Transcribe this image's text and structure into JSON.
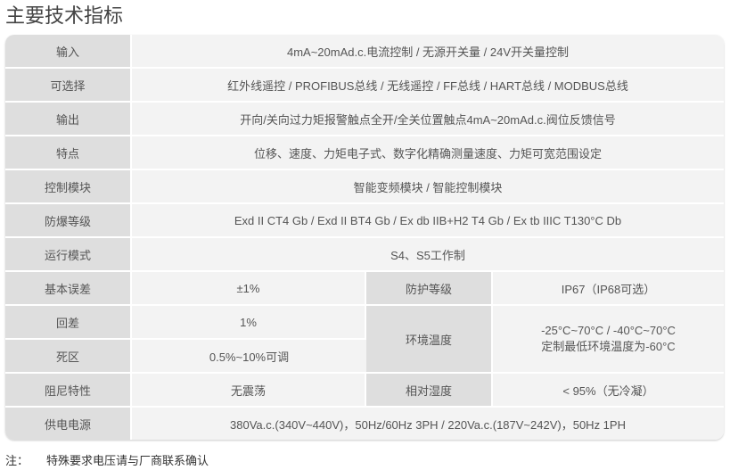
{
  "title": "主要技术指标",
  "rows": [
    {
      "label": "输入",
      "value": "4mA~20mAd.c.电流控制 / 无源开关量 / 24V开关量控制"
    },
    {
      "label": "可选择",
      "value": "红外线遥控 / PROFIBUS总线 / 无线遥控 / FF总线 / HART总线 / MODBUS总线"
    },
    {
      "label": "输出",
      "value": "开向/关向过力矩报警触点全开/全关位置触点4mA~20mAd.c.阀位反馈信号"
    },
    {
      "label": "特点",
      "value": "位移、速度、力矩电子式、数字化精确测量速度、力矩可宽范围设定"
    },
    {
      "label": "控制模块",
      "value": "智能变频模块 / 智能控制模块"
    },
    {
      "label": "防爆等级",
      "value": "Exd II CT4 Gb / Exd II BT4 Gb / Ex db IIB+H2 T4 Gb / Ex tb IIIC T130°C Db"
    },
    {
      "label": "运行模式",
      "value": "S4、S5工作制"
    }
  ],
  "split": {
    "basic_error": {
      "label": "基本误差",
      "value": "±1%"
    },
    "protection": {
      "label": "防护等级",
      "value": "IP67（IP68可选）"
    },
    "hysteresis": {
      "label": "回差",
      "value": "1%"
    },
    "ambient_temp": {
      "label": "环境温度",
      "value_line1": "-25°C~70°C / -40°C~70°C",
      "value_line2": "定制最低环境温度为-60°C"
    },
    "dead_zone": {
      "label": "死区",
      "value": "0.5%~10%可调"
    },
    "damping": {
      "label": "阻尼特性",
      "value": "无震荡"
    },
    "humidity": {
      "label": "相对湿度",
      "value": "< 95%（无冷凝）"
    }
  },
  "power": {
    "label": "供电电源",
    "value": "380Va.c.(340V~440V)，50Hz/60Hz 3PH / 220Va.c.(187V~242V)，50Hz 1PH"
  },
  "note": {
    "prefix": "注：",
    "text": "特殊要求电压请与厂商联系确认"
  }
}
